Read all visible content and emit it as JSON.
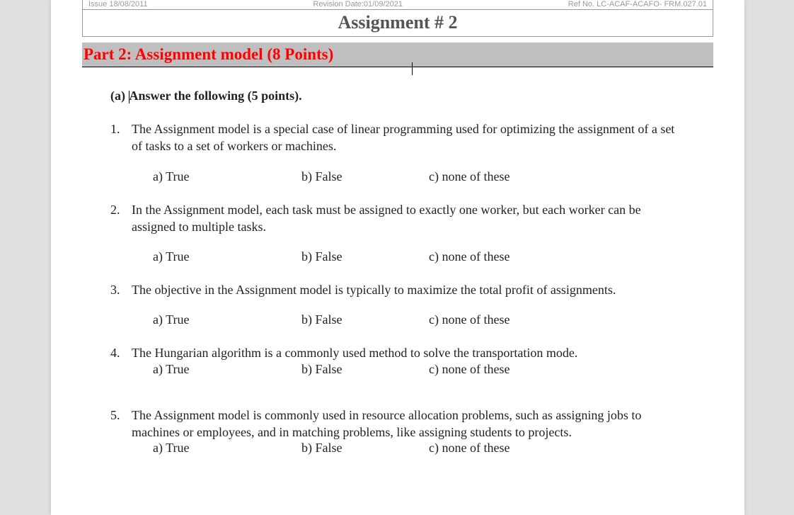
{
  "header": {
    "issue": "Issue 18/08/2011",
    "revision": "Revision Date:01/09/2021",
    "ref": "Ref No. LC-ACAF-ACAFO- FRM.027.01"
  },
  "title": "Assignment # 2",
  "part_heading": "Part 2: Assignment model (8 Points)",
  "section_a_label": "(a) ",
  "section_a_text": "Answer the following (5 points).",
  "questions": {
    "q1": {
      "num": "1.",
      "text": "The Assignment model is a special case of linear programming used for optimizing the assignment of a set of tasks to a set of workers or machines."
    },
    "q2": {
      "num": "2.",
      "text": "In the Assignment model, each task must be assigned to exactly one worker, but each worker can be assigned to multiple tasks."
    },
    "q3": {
      "num": "3.",
      "text": "The objective in the Assignment model is typically to maximize the total profit of assignments."
    },
    "q4": {
      "num": "4.",
      "text": "The Hungarian algorithm is a commonly used method to solve the transportation mode."
    },
    "q5": {
      "num": "5.",
      "text": "The Assignment model is commonly used in resource allocation problems, such as assigning jobs to machines or employees, and in matching problems, like assigning students to projects."
    }
  },
  "options": {
    "a": "a)  True",
    "b": "b) False",
    "c": "c) none of these"
  },
  "colors": {
    "page_bg": "#e0e0e0",
    "paper_bg": "#ffffff",
    "header_text": "#9a9a9a",
    "title_text": "#555555",
    "part_bg": "#bfbfbf",
    "part_text": "#ff0000",
    "body_text": "#222222",
    "border": "#999999"
  }
}
